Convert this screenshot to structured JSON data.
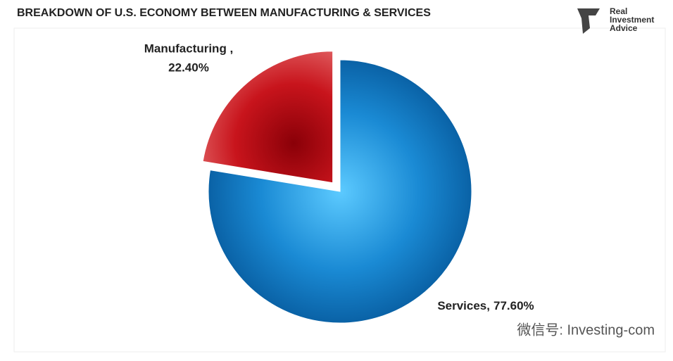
{
  "chart_data": {
    "type": "pie",
    "title": "BREAKDOWN OF U.S. ECONOMY BETWEEN MANUFACTURING & SERVICES",
    "categories": [
      "Services,",
      "Manufacturing ,"
    ],
    "values": [
      77.6,
      22.4
    ],
    "value_labels": [
      "77.60%",
      "22.40%"
    ],
    "colors": [
      "#1a8ad4",
      "#c8141c"
    ],
    "exploded": [
      false,
      true
    ]
  },
  "logo": {
    "lines": [
      "Real",
      "Investment",
      "Advice"
    ]
  },
  "watermark": "微信号: Investing-com"
}
